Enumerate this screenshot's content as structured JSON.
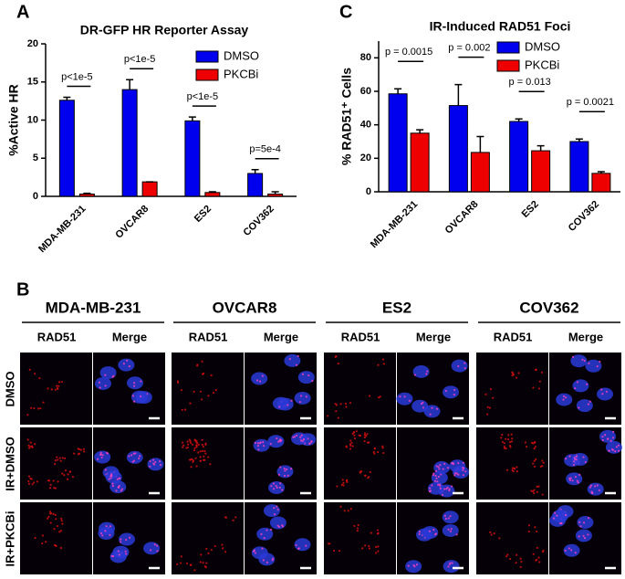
{
  "panel_labels": [
    "A",
    "B",
    "C"
  ],
  "chart_data": [
    {
      "type": "bar",
      "title": "DR-GFP HR Reporter Assay",
      "y_label": "%Active HR",
      "categories": [
        "MDA-MB-231",
        "OVCAR8",
        "ES2",
        "COV362"
      ],
      "series": [
        {
          "name": "DMSO",
          "color": "#0000ee",
          "values": [
            12.6,
            14.0,
            9.9,
            3.0
          ],
          "errors": [
            0.4,
            1.3,
            0.5,
            0.5
          ]
        },
        {
          "name": "PKCBi",
          "color": "#ee0000",
          "values": [
            0.3,
            1.9,
            0.5,
            0.3
          ],
          "errors": [
            0.1,
            0.0,
            0.1,
            0.3
          ]
        }
      ],
      "annotations": [
        "p<1e-5",
        "p<1e-5",
        "p<1e-5",
        "p=5e-4"
      ],
      "ylim": [
        0,
        20
      ],
      "yticks": [
        0,
        5,
        10,
        15,
        20
      ],
      "legend": "upper right"
    },
    {
      "type": "bar",
      "title": "IR-Induced RAD51 Foci",
      "y_label": "% RAD51⁺ Cells",
      "categories": [
        "MDA-MB-231",
        "OVCAR8",
        "ES2",
        "COV362"
      ],
      "series": [
        {
          "name": "DMSO",
          "color": "#0000ee",
          "values": [
            58.5,
            51.5,
            42,
            30
          ],
          "errors": [
            3,
            12.5,
            1.5,
            1.5
          ]
        },
        {
          "name": "PKCBi",
          "color": "#ee0000",
          "values": [
            35,
            23.5,
            24.5,
            11
          ],
          "errors": [
            2,
            9.5,
            3,
            1
          ]
        }
      ],
      "annotations": [
        "p = 0.0015",
        "p = 0.002",
        "p = 0.013",
        "p = 0.0021"
      ],
      "ylim": [
        0,
        90
      ],
      "yticks": [
        0,
        20,
        40,
        60,
        80
      ],
      "legend": "upper right"
    }
  ],
  "microscopy": {
    "cell_lines": [
      "MDA-MB-231",
      "OVCAR8",
      "ES2",
      "COV362"
    ],
    "channels": [
      "RAD51",
      "Merge"
    ],
    "conditions": [
      "DMSO",
      "IR+DMSO",
      "IR+PKCBi"
    ]
  }
}
